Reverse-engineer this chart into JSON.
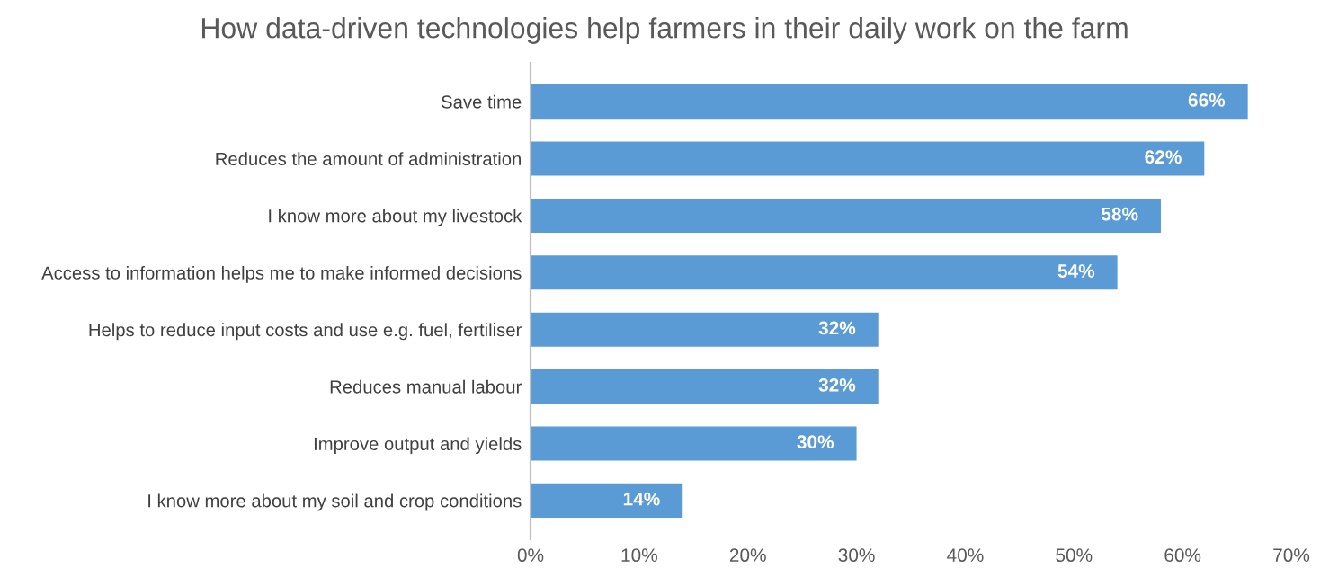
{
  "chart_data": {
    "type": "bar",
    "orientation": "horizontal",
    "title": "How data-driven technologies help farmers in their daily work on the farm",
    "categories": [
      "Save time",
      "Reduces the amount of administration",
      "I know more about my livestock",
      "Access to information helps me to make informed decisions",
      "Helps to reduce input costs and use e.g. fuel, fertiliser",
      "Reduces manual labour",
      "Improve output and yields",
      "I know more about my soil and crop conditions"
    ],
    "values": [
      66,
      62,
      58,
      54,
      32,
      32,
      30,
      14
    ],
    "value_labels": [
      "66%",
      "62%",
      "58%",
      "54%",
      "32%",
      "32%",
      "30%",
      "14%"
    ],
    "color": "#5b9bd5",
    "xlim": [
      0,
      70
    ],
    "xticks": [
      {
        "value": 0,
        "label": "0%"
      },
      {
        "value": 10,
        "label": "10%"
      },
      {
        "value": 20,
        "label": "20%"
      },
      {
        "value": 30,
        "label": "30%"
      },
      {
        "value": 40,
        "label": "40%"
      },
      {
        "value": 50,
        "label": "50%"
      },
      {
        "value": 60,
        "label": "60%"
      },
      {
        "value": 70,
        "label": "70%"
      }
    ],
    "grid": false,
    "legend": false
  }
}
